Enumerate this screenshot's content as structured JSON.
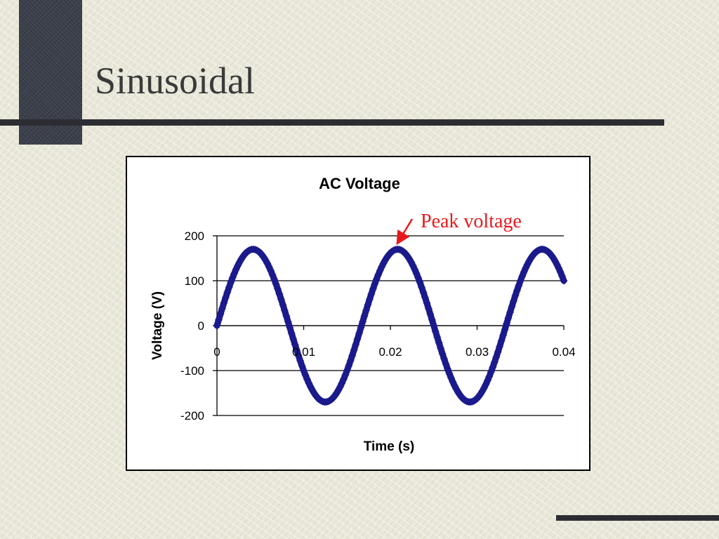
{
  "slide": {
    "title": "Sinusoidal"
  },
  "colors": {
    "series": "#1a1a8c",
    "annotation": "#e8191c",
    "rule": "#2b2d33"
  },
  "chart_data": {
    "type": "line",
    "title": "AC Voltage",
    "xlabel": "Time (s)",
    "ylabel": "Voltage (V)",
    "xlim": [
      0,
      0.04
    ],
    "ylim": [
      -200,
      200
    ],
    "x_ticks": [
      0,
      0.01,
      0.02,
      0.03,
      0.04
    ],
    "x_tick_labels": [
      "0",
      "0.01",
      "0.02",
      "0.03",
      "0.04"
    ],
    "y_ticks": [
      200,
      100,
      0,
      -100,
      -200
    ],
    "y_tick_labels": [
      "200",
      "100",
      "0",
      "-100",
      "-200"
    ],
    "grid": true,
    "legend": "none",
    "series": [
      {
        "amplitude": 170,
        "frequency": 60,
        "x_start": 0,
        "x_end": 0.04,
        "marker": "diamond"
      }
    ],
    "annotations": [
      {
        "text": "Peak voltage",
        "x": 0.02083,
        "y": 170
      }
    ]
  }
}
